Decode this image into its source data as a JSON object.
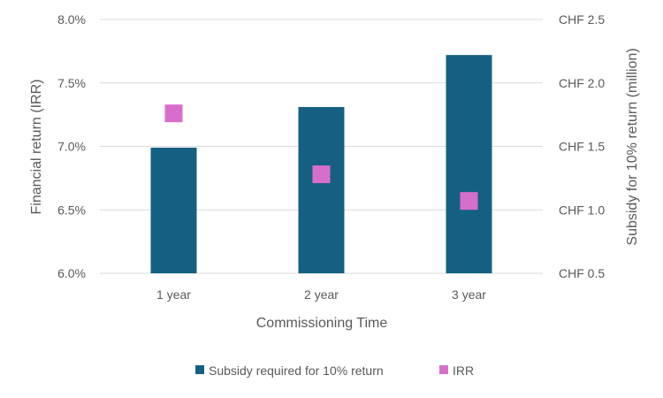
{
  "chart_data": {
    "type": "bar",
    "xlabel": "Commissioning Time",
    "ylabel_left": "Financial return (IRR)",
    "ylabel_right": "Subsidy for 10% return (million)",
    "categories": [
      "1 year",
      "2 year",
      "3 year"
    ],
    "y_left": {
      "min": 6.0,
      "max": 8.0,
      "ticks": [
        "6.0%",
        "6.5%",
        "7.0%",
        "7.5%",
        "8.0%"
      ]
    },
    "y_right": {
      "min": 0.5,
      "max": 2.5,
      "ticks": [
        "CHF 0.5",
        "CHF 1.0",
        "CHF 1.5",
        "CHF 2.0",
        "CHF 2.5"
      ]
    },
    "grid": true,
    "legend_position": "bottom",
    "series": [
      {
        "name": "Subsidy required for 10% return",
        "kind": "bar",
        "axis": "right",
        "color": "#156082",
        "values": [
          1.49,
          1.81,
          2.22
        ]
      },
      {
        "name": "IRR",
        "kind": "marker",
        "axis": "left",
        "color": "#d86ecc",
        "values": [
          7.26,
          6.78,
          6.57
        ]
      }
    ]
  }
}
